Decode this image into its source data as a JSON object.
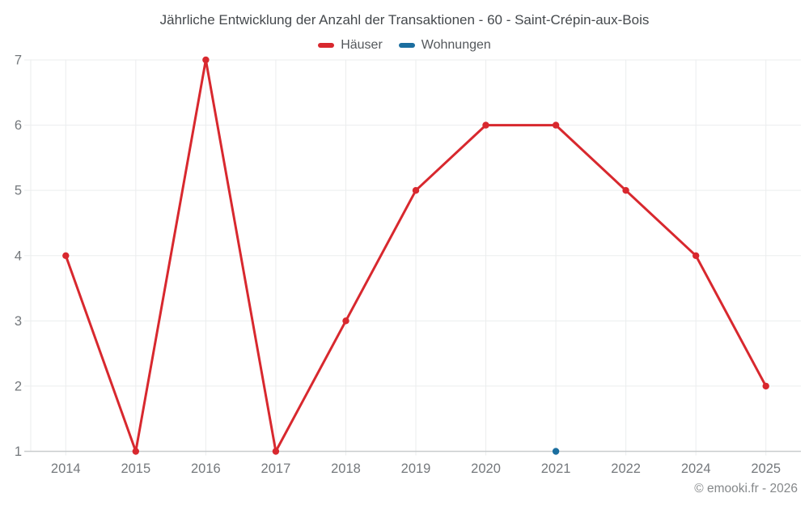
{
  "chart_data": {
    "type": "line",
    "title": "Jährliche Entwicklung der Anzahl der Transaktionen - 60 - Saint-Crépin-aux-Bois",
    "categories": [
      "2014",
      "2015",
      "2016",
      "2017",
      "2018",
      "2019",
      "2020",
      "2021",
      "2022",
      "2024",
      "2025"
    ],
    "series": [
      {
        "name": "Häuser",
        "color": "#d8282e",
        "values": [
          4,
          1,
          7,
          1,
          3,
          5,
          6,
          6,
          5,
          4,
          2
        ]
      },
      {
        "name": "Wohnungen",
        "color": "#1b6e9f",
        "values": [
          null,
          null,
          null,
          null,
          null,
          null,
          null,
          1,
          null,
          null,
          null
        ]
      }
    ],
    "ylim": [
      1,
      7
    ],
    "yticks": [
      1,
      2,
      3,
      4,
      5,
      6,
      7
    ],
    "xlabel": "",
    "ylabel": "",
    "grid": true,
    "legend_position": "top",
    "marker": "circle"
  },
  "footer": {
    "copyright": "© emooki.fr - 2026"
  },
  "style": {
    "gridline_color": "#ebedee",
    "axis_line_color": "#c9ccce",
    "axis_label_color": "#74787c"
  }
}
